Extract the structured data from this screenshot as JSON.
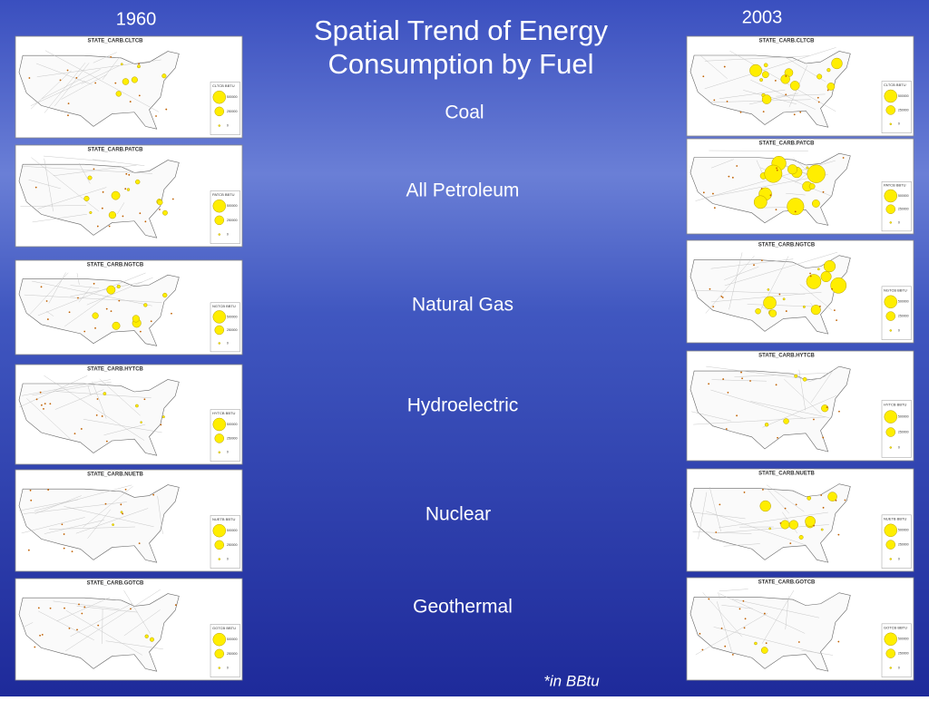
{
  "slide": {
    "title_line1": "Spatial Trend of Energy",
    "title_line2": "Consumption by Fuel",
    "year_left": "1960",
    "year_right": "2003",
    "fuels": [
      "Coal",
      "All Petroleum",
      "Natural Gas",
      "Hydroelectric",
      "Nuclear",
      "Geothermal"
    ],
    "footnote": "*in BBtu"
  },
  "maps_1960": [
    {
      "title": "STATE_CARB.CLTCB",
      "legend_title": "CLTCB BBTU"
    },
    {
      "title": "STATE_CARB.PATCB",
      "legend_title": "PATCB BBTU"
    },
    {
      "title": "STATE_CARB.NGTCB",
      "legend_title": "NGTCB BBTU"
    },
    {
      "title": "STATE_CARB.HYTCB",
      "legend_title": "HYTCB BBTU"
    },
    {
      "title": "STATE_CARB.NUETB",
      "legend_title": "NUETB BBTU"
    },
    {
      "title": "STATE_CARB.GOTCB",
      "legend_title": "GOTCB BBTU"
    }
  ],
  "maps_2003": [
    {
      "title": "STATE_CARB.CLTCB",
      "legend_title": "CLTCB BBTU"
    },
    {
      "title": "STATE_CARB.PATCB",
      "legend_title": "PATCB BBTU"
    },
    {
      "title": "STATE_CARB.NGTCB",
      "legend_title": "NGTCB BBTU"
    },
    {
      "title": "STATE_CARB.HYTCB",
      "legend_title": "HYTCB BBTU"
    },
    {
      "title": "STATE_CARB.NUETB",
      "legend_title": "NUETB BBTU"
    },
    {
      "title": "STATE_CARB.GOTCB",
      "legend_title": "GOTCB BBTU"
    }
  ],
  "legend_values": [
    "500000",
    "250000",
    "0"
  ]
}
